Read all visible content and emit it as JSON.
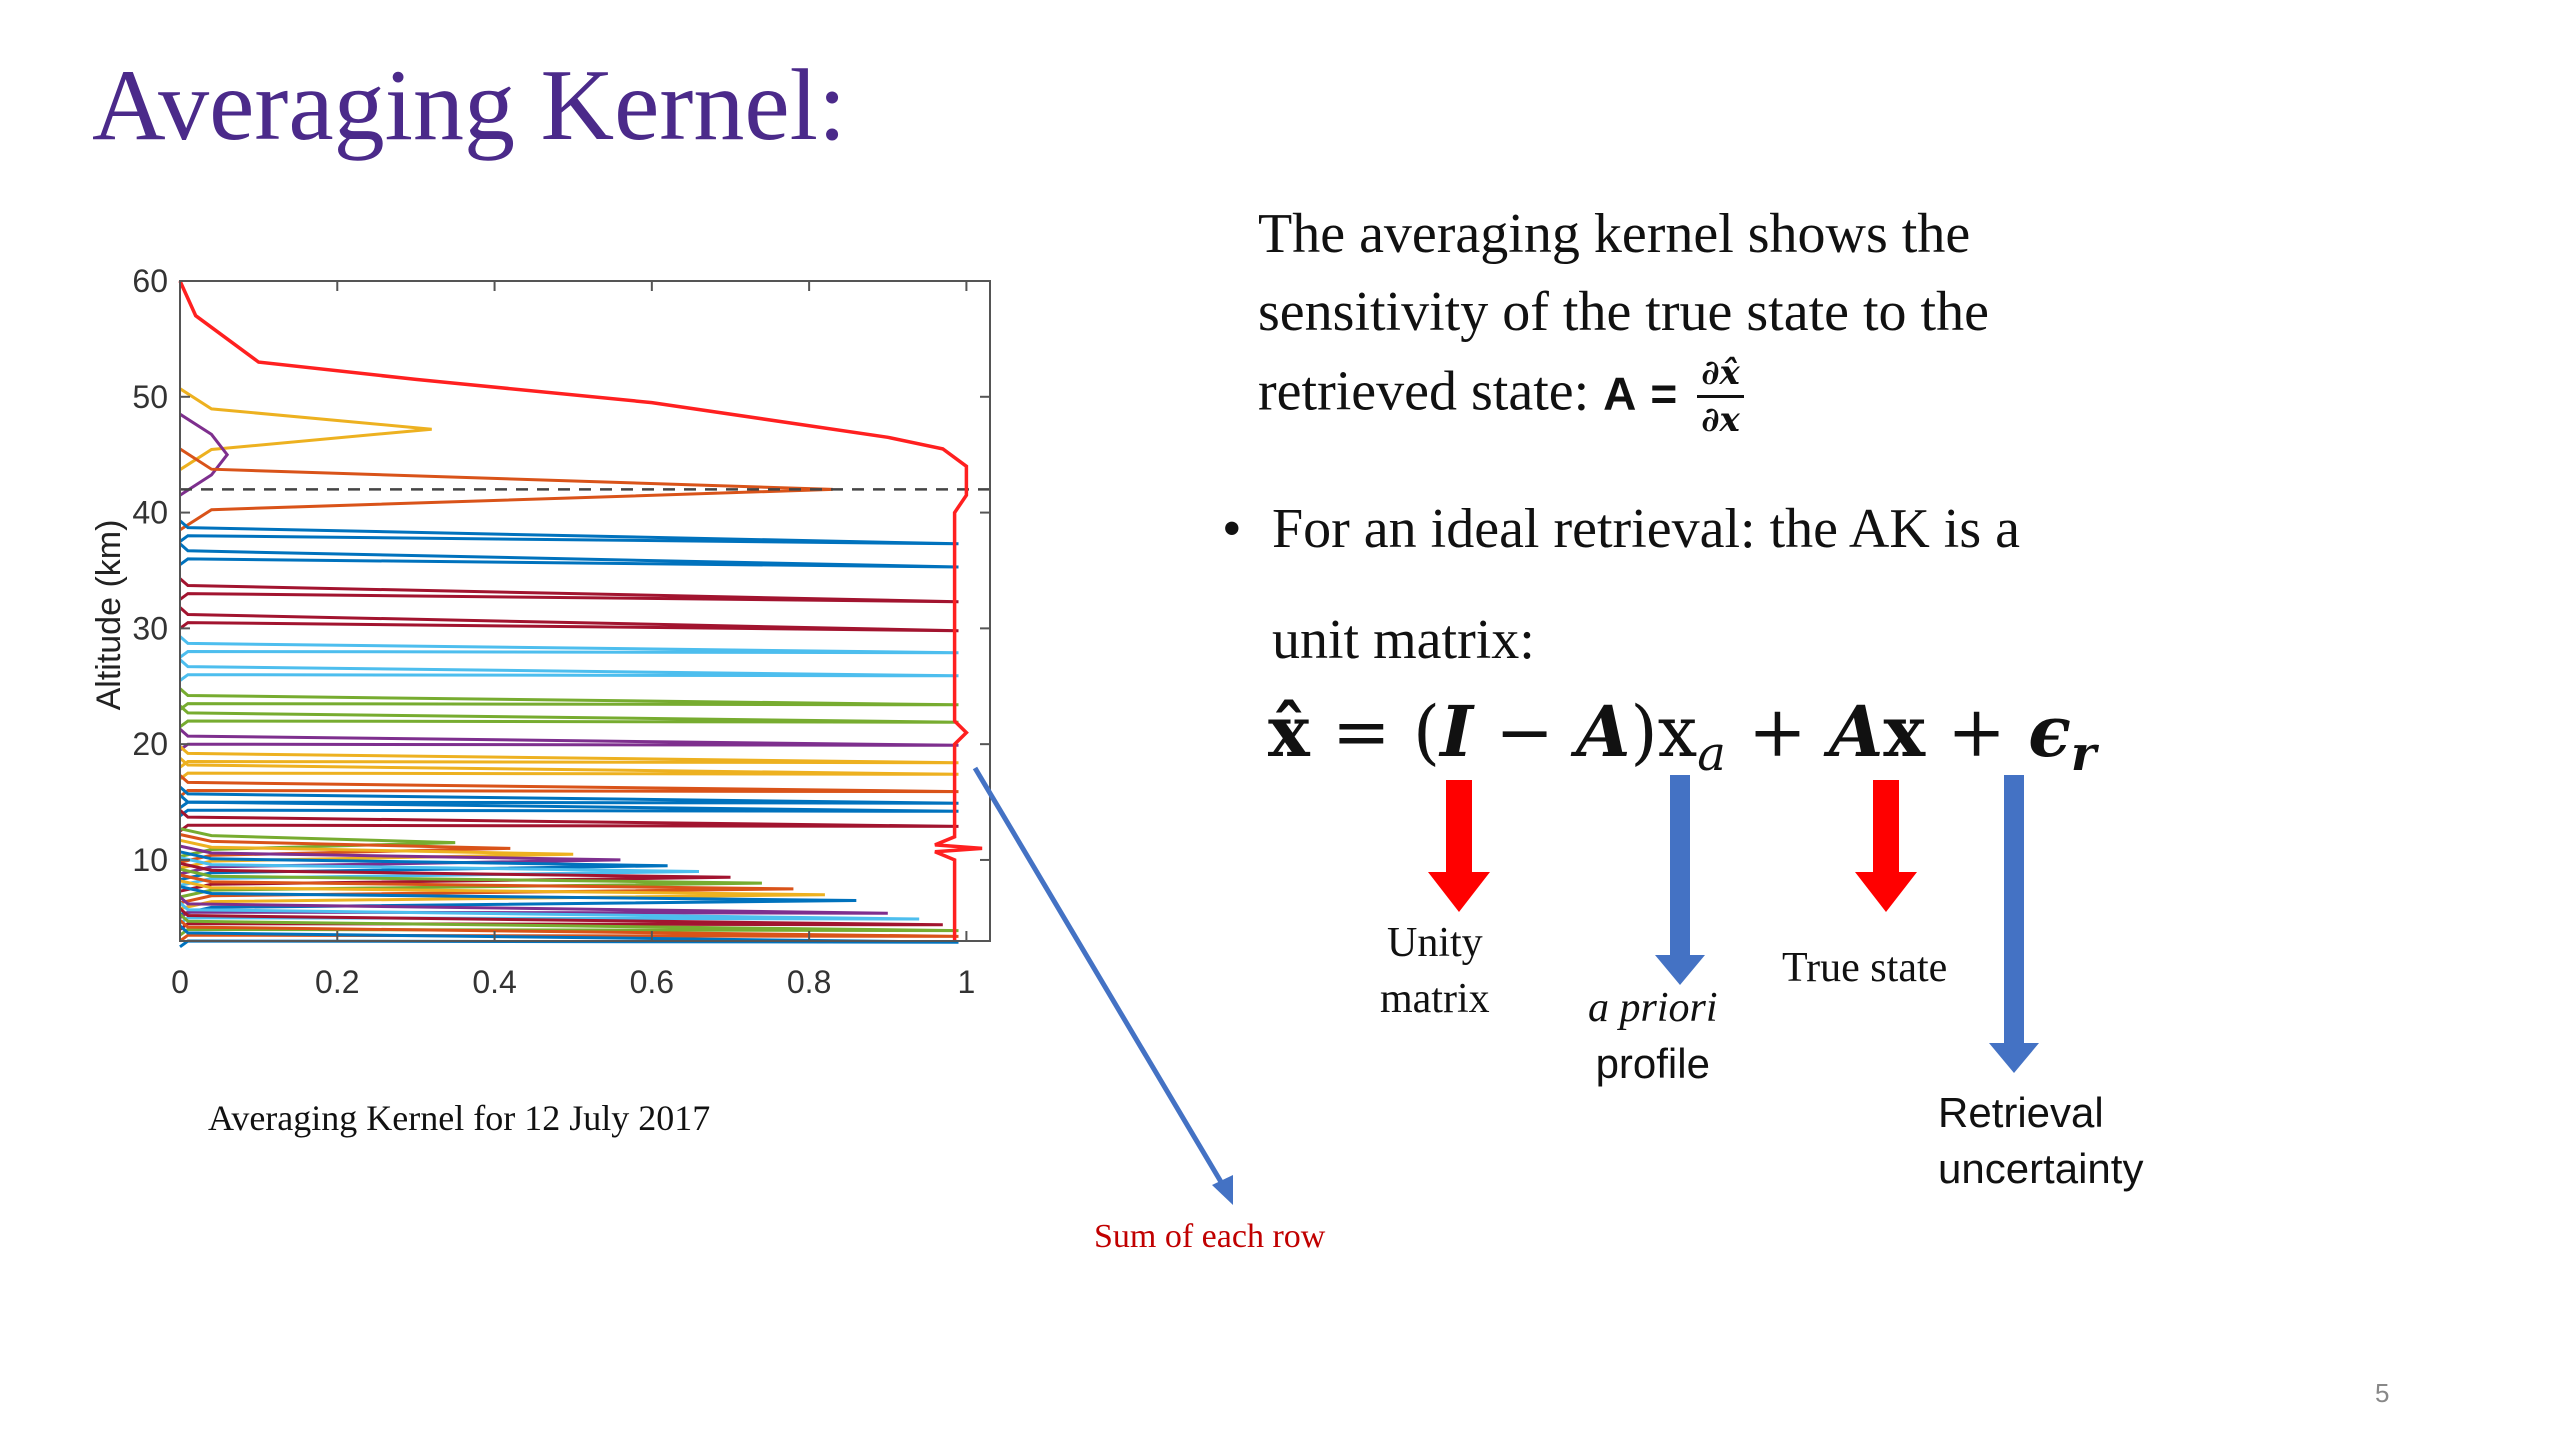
{
  "slide": {
    "title": "Averaging Kernel:",
    "page_number": "5"
  },
  "text": {
    "line1": "The averaging kernel shows the",
    "line2": "sensitivity of the true state to the",
    "line3": "retrieved state:",
    "A_symbol": "A",
    "equals": "=",
    "frac_num": "∂x̂",
    "frac_den": "∂x",
    "bullet": "•",
    "bullet_line": "For an ideal retrieval: the AK is a",
    "bullet_cont": "unit matrix:"
  },
  "equation": {
    "xhat": "x̂",
    "eq": " = (",
    "I": "I",
    "minus": " − ",
    "A1": "A",
    "close": ")x",
    "sub_a": "a",
    "plus1": " + ",
    "A2": "A",
    "x": "x",
    "plus2": " + ",
    "eps": "ϵ",
    "sub_r": "r"
  },
  "labels": {
    "unity": [
      "Unity",
      "matrix"
    ],
    "apriori_italic": "a priori",
    "apriori_plain": "profile",
    "true_state": "True state",
    "retrieval": [
      "Retrieval",
      "uncertainty"
    ],
    "sum_of_each_row": "Sum of each row"
  },
  "colors": {
    "title": "#4b2a8a",
    "red_arrow": "#ff0000",
    "blue_arrow": "#4472c4",
    "sum_label": "#c00000"
  },
  "chart_data": {
    "type": "line",
    "title": "",
    "caption": "Averaging Kernel for 12 July 2017",
    "xlabel": "",
    "ylabel": "Altitude (km)",
    "xlim": [
      0,
      1.03
    ],
    "ylim": [
      3,
      60
    ],
    "xticks": [
      "0",
      "0.2",
      "0.4",
      "0.6",
      "0.8",
      "1"
    ],
    "yticks": [
      "10",
      "20",
      "30",
      "40",
      "50",
      "60"
    ],
    "reference_line": {
      "y": 42,
      "style": "dashed",
      "color": "#444444"
    },
    "sum_curve": {
      "color": "#ff2020",
      "points": [
        [
          0,
          60
        ],
        [
          0.02,
          57
        ],
        [
          0.1,
          53
        ],
        [
          0.3,
          51.5
        ],
        [
          0.6,
          49.5
        ],
        [
          0.9,
          46.5
        ],
        [
          0.97,
          45.5
        ],
        [
          1.0,
          44
        ],
        [
          1.0,
          41.5
        ],
        [
          0.985,
          40
        ],
        [
          0.985,
          22
        ],
        [
          1.0,
          21
        ],
        [
          0.985,
          20
        ],
        [
          0.985,
          12
        ],
        [
          0.96,
          11.3
        ],
        [
          1.02,
          11.0
        ],
        [
          0.96,
          10.7
        ],
        [
          0.985,
          10
        ],
        [
          0.985,
          3
        ]
      ]
    },
    "peaks": [
      {
        "altitude": 47.2,
        "peak": 0.32,
        "color": "#edb120"
      },
      {
        "altitude": 45.0,
        "peak": 0.06,
        "color": "#7e2f8e"
      },
      {
        "altitude": 42.0,
        "peak": 0.83,
        "color": "#d95319"
      },
      {
        "altitude": 38.5,
        "peak": 0.99,
        "color": "#0072bd"
      },
      {
        "altitude": 36.5,
        "peak": 0.99,
        "color": "#0072bd"
      },
      {
        "altitude": 33.5,
        "peak": 0.99,
        "color": "#a2142f"
      },
      {
        "altitude": 31.0,
        "peak": 0.99,
        "color": "#a2142f"
      },
      {
        "altitude": 28.5,
        "peak": 0.99,
        "color": "#4dbeee"
      },
      {
        "altitude": 26.5,
        "peak": 0.99,
        "color": "#4dbeee"
      },
      {
        "altitude": 24.0,
        "peak": 0.99,
        "color": "#77ac30"
      },
      {
        "altitude": 22.5,
        "peak": 0.99,
        "color": "#77ac30"
      },
      {
        "altitude": 20.5,
        "peak": 0.99,
        "color": "#7e2f8e"
      },
      {
        "altitude": 19.0,
        "peak": 0.99,
        "color": "#edb120"
      },
      {
        "altitude": 18.0,
        "peak": 0.99,
        "color": "#edb120"
      },
      {
        "altitude": 16.5,
        "peak": 0.99,
        "color": "#d95319"
      },
      {
        "altitude": 15.5,
        "peak": 0.99,
        "color": "#0072bd"
      },
      {
        "altitude": 14.8,
        "peak": 0.99,
        "color": "#0072bd"
      },
      {
        "altitude": 13.5,
        "peak": 0.99,
        "color": "#a2142f"
      },
      {
        "altitude": 11.5,
        "peak": 0.35,
        "color": "#77ac30"
      },
      {
        "altitude": 11.0,
        "peak": 0.42,
        "color": "#d95319"
      },
      {
        "altitude": 10.5,
        "peak": 0.5,
        "color": "#edb120"
      },
      {
        "altitude": 10.0,
        "peak": 0.56,
        "color": "#7e2f8e"
      },
      {
        "altitude": 9.5,
        "peak": 0.62,
        "color": "#0072bd"
      },
      {
        "altitude": 9.0,
        "peak": 0.66,
        "color": "#4dbeee"
      },
      {
        "altitude": 8.5,
        "peak": 0.7,
        "color": "#a2142f"
      },
      {
        "altitude": 8.0,
        "peak": 0.74,
        "color": "#77ac30"
      },
      {
        "altitude": 7.5,
        "peak": 0.78,
        "color": "#d95319"
      },
      {
        "altitude": 7.0,
        "peak": 0.82,
        "color": "#edb120"
      },
      {
        "altitude": 6.5,
        "peak": 0.86,
        "color": "#0072bd"
      },
      {
        "altitude": 6.0,
        "peak": 0.9,
        "color": "#7e2f8e"
      },
      {
        "altitude": 5.5,
        "peak": 0.94,
        "color": "#4dbeee"
      },
      {
        "altitude": 5.0,
        "peak": 0.97,
        "color": "#a2142f"
      },
      {
        "altitude": 4.5,
        "peak": 0.99,
        "color": "#77ac30"
      },
      {
        "altitude": 4.0,
        "peak": 0.99,
        "color": "#d95319"
      },
      {
        "altitude": 3.5,
        "peak": 0.99,
        "color": "#0072bd"
      }
    ],
    "grid": false,
    "legend": "none"
  }
}
